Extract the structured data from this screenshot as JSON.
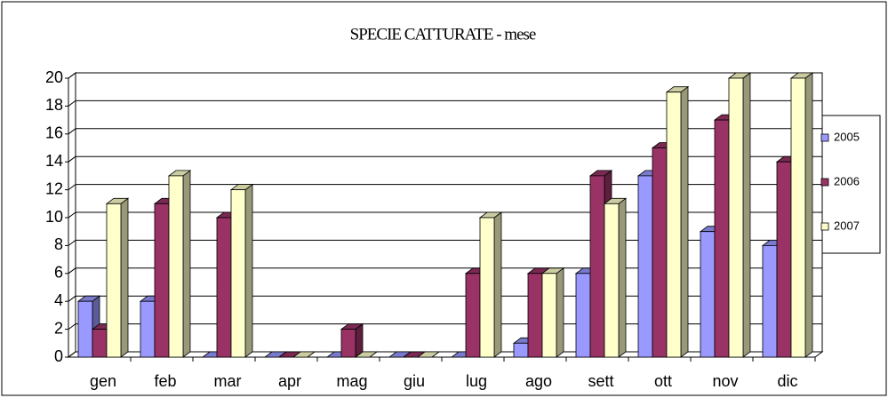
{
  "chart_data": {
    "type": "bar",
    "title": "SPECIE CATTURATE - mese",
    "categories": [
      "gen",
      "feb",
      "mar",
      "apr",
      "mag",
      "giu",
      "lug",
      "ago",
      "sett",
      "ott",
      "nov",
      "dic"
    ],
    "series": [
      {
        "name": "2005",
        "color": "#9999ff",
        "values": [
          4,
          4,
          0,
          0,
          0,
          0,
          0,
          1,
          6,
          13,
          9,
          8
        ]
      },
      {
        "name": "2006",
        "color": "#993366",
        "values": [
          2,
          11,
          10,
          0,
          2,
          0,
          6,
          6,
          13,
          15,
          17,
          14
        ]
      },
      {
        "name": "2007",
        "color": "#ffffcc",
        "values": [
          11,
          13,
          12,
          0,
          0,
          0,
          10,
          6,
          11,
          19,
          20,
          20
        ]
      }
    ],
    "ylim": [
      0,
      20
    ],
    "yticks": [
      0,
      2,
      4,
      6,
      8,
      10,
      12,
      14,
      16,
      18,
      20
    ],
    "grid": true,
    "legend": "right"
  }
}
